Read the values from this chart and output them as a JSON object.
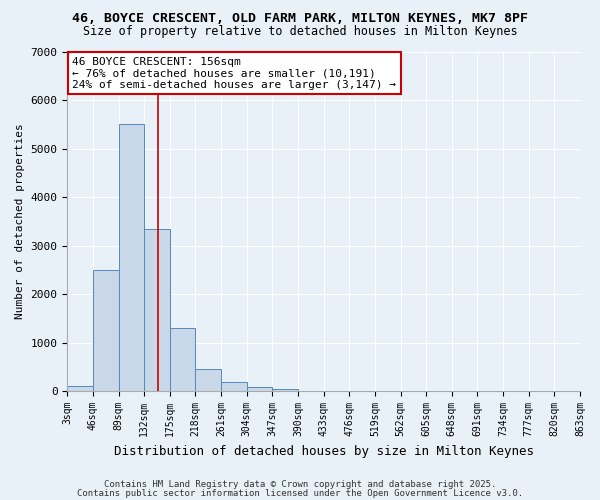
{
  "title_line1": "46, BOYCE CRESCENT, OLD FARM PARK, MILTON KEYNES, MK7 8PF",
  "title_line2": "Size of property relative to detached houses in Milton Keynes",
  "xlabel": "Distribution of detached houses by size in Milton Keynes",
  "ylabel": "Number of detached properties",
  "bin_edges": [
    3,
    46,
    89,
    132,
    175,
    218,
    261,
    304,
    347,
    390,
    433,
    476,
    519,
    562,
    605,
    648,
    691,
    734,
    777,
    820,
    863
  ],
  "bar_heights": [
    100,
    2500,
    5500,
    3350,
    1300,
    450,
    180,
    90,
    50,
    0,
    0,
    0,
    0,
    0,
    0,
    0,
    0,
    0,
    0,
    0
  ],
  "bar_color": "#c8d8e8",
  "bar_edge_color": "#5588bb",
  "ylim": [
    0,
    7000
  ],
  "property_sqm": 156,
  "annotation_line1": "46 BOYCE CRESCENT: 156sqm",
  "annotation_line2": "← 76% of detached houses are smaller (10,191)",
  "annotation_line3": "24% of semi-detached houses are larger (3,147) →",
  "annotation_box_color": "#ffffff",
  "annotation_box_edge_color": "#cc0000",
  "vline_color": "#cc0000",
  "tick_labels": [
    "3sqm",
    "46sqm",
    "89sqm",
    "132sqm",
    "175sqm",
    "218sqm",
    "261sqm",
    "304sqm",
    "347sqm",
    "390sqm",
    "433sqm",
    "476sqm",
    "519sqm",
    "562sqm",
    "605sqm",
    "648sqm",
    "691sqm",
    "734sqm",
    "777sqm",
    "820sqm",
    "863sqm"
  ],
  "footer_text1": "Contains HM Land Registry data © Crown copyright and database right 2025.",
  "footer_text2": "Contains public sector information licensed under the Open Government Licence v3.0.",
  "bg_color": "#e8f0f8",
  "grid_color": "#ffffff",
  "title_fontsize": 9.5,
  "subtitle_fontsize": 8.5,
  "ylabel_fontsize": 8,
  "xlabel_fontsize": 9,
  "tick_fontsize": 7,
  "annot_fontsize": 8,
  "footer_fontsize": 6.5
}
